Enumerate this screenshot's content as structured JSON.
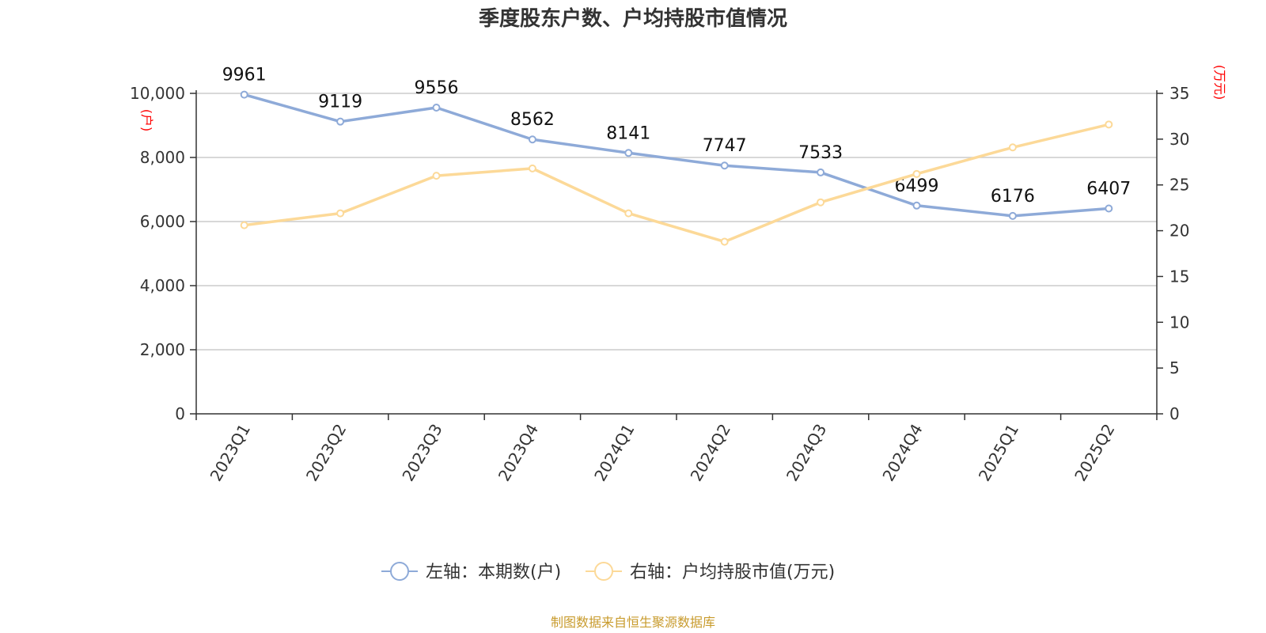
{
  "chart_data": {
    "type": "line",
    "title": "季度股东户数、户均持股市值情况",
    "categories": [
      "2023Q1",
      "2023Q2",
      "2023Q3",
      "2023Q4",
      "2024Q1",
      "2024Q2",
      "2024Q3",
      "2024Q4",
      "2025Q1",
      "2025Q2"
    ],
    "left_axis": {
      "unit_label": "(户)",
      "ylim": [
        0,
        10000
      ],
      "ticks": [
        "0",
        "2,000",
        "4,000",
        "6,000",
        "8,000",
        "10,000"
      ],
      "tick_values": [
        0,
        2000,
        4000,
        6000,
        8000,
        10000
      ]
    },
    "right_axis": {
      "unit_label": "(万元)",
      "ylim": [
        0,
        35
      ],
      "ticks": [
        "0",
        "5",
        "10",
        "15",
        "20",
        "25",
        "30",
        "35"
      ],
      "tick_values": [
        0,
        5,
        10,
        15,
        20,
        25,
        30,
        35
      ]
    },
    "grid": true,
    "legend_position": "bottom-center",
    "series": [
      {
        "name": "左轴：本期数(户)",
        "axis": "left",
        "color": "#8eaad8",
        "values": [
          9961,
          9119,
          9556,
          8562,
          8141,
          7747,
          7533,
          6499,
          6176,
          6407
        ],
        "data_labels": [
          "9961",
          "9119",
          "9556",
          "8562",
          "8141",
          "7747",
          "7533",
          "6499",
          "6176",
          "6407"
        ]
      },
      {
        "name": "右轴：户均持股市值(万元)",
        "axis": "right",
        "color": "#fcd998",
        "values": [
          20.6,
          21.9,
          26.0,
          26.8,
          21.9,
          18.8,
          23.1,
          26.2,
          29.1,
          31.6
        ]
      }
    ]
  },
  "footer": {
    "source": "制图数据来自恒生聚源数据库"
  }
}
